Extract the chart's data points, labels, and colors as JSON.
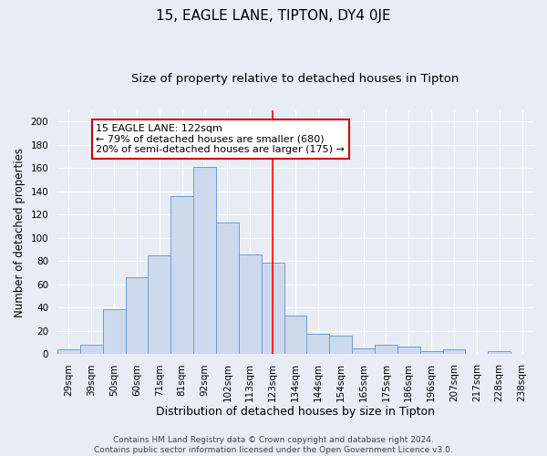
{
  "title": "15, EAGLE LANE, TIPTON, DY4 0JE",
  "subtitle": "Size of property relative to detached houses in Tipton",
  "xlabel": "Distribution of detached houses by size in Tipton",
  "ylabel": "Number of detached properties",
  "bar_labels": [
    "29sqm",
    "39sqm",
    "50sqm",
    "60sqm",
    "71sqm",
    "81sqm",
    "92sqm",
    "102sqm",
    "113sqm",
    "123sqm",
    "134sqm",
    "144sqm",
    "154sqm",
    "165sqm",
    "175sqm",
    "186sqm",
    "196sqm",
    "207sqm",
    "217sqm",
    "228sqm",
    "238sqm"
  ],
  "bar_values": [
    4,
    8,
    39,
    66,
    85,
    136,
    161,
    113,
    86,
    79,
    33,
    18,
    16,
    5,
    8,
    7,
    3,
    4,
    0,
    3,
    0
  ],
  "bar_color": "#ccd9ec",
  "bar_edge_color": "#6a9fd8",
  "background_color": "#e8edf5",
  "grid_color": "#ffffff",
  "annotation_text": "15 EAGLE LANE: 122sqm\n← 79% of detached houses are smaller (680)\n20% of semi-detached houses are larger (175) →",
  "annotation_box_color": "#ffffff",
  "annotation_box_edge": "#cc0000",
  "red_line_x": 9.0,
  "ylim": [
    0,
    210
  ],
  "yticks": [
    0,
    20,
    40,
    60,
    80,
    100,
    120,
    140,
    160,
    180,
    200
  ],
  "footer_text": "Contains HM Land Registry data © Crown copyright and database right 2024.\nContains public sector information licensed under the Open Government Licence v3.0.",
  "title_fontsize": 11,
  "subtitle_fontsize": 9.5,
  "xlabel_fontsize": 9,
  "ylabel_fontsize": 8.5,
  "tick_fontsize": 7.5,
  "annotation_fontsize": 8,
  "footer_fontsize": 6.5
}
